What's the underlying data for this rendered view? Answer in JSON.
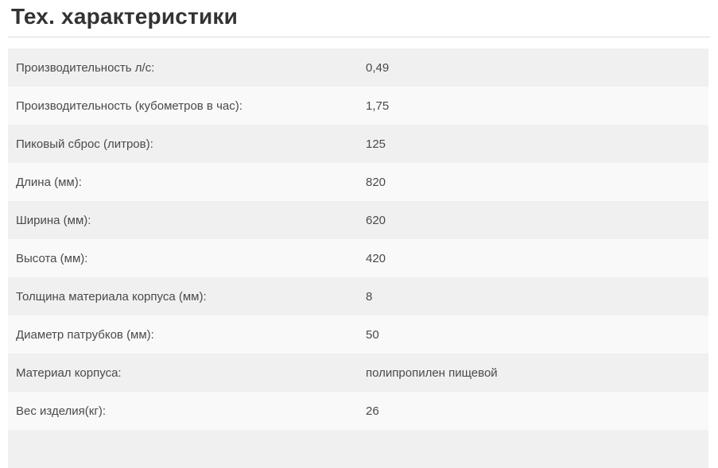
{
  "page": {
    "title": "Тех. характеристики"
  },
  "table": {
    "rows": [
      {
        "label": "Производительность л/с:",
        "value": "0,49"
      },
      {
        "label": "Производительность (кубометров в час):",
        "value": "1,75"
      },
      {
        "label": "Пиковый сброс (литров):",
        "value": "125"
      },
      {
        "label": "Длина (мм):",
        "value": "820"
      },
      {
        "label": "Ширина (мм):",
        "value": "620"
      },
      {
        "label": "Высота (мм):",
        "value": "420"
      },
      {
        "label": "Толщина материала корпуса (мм):",
        "value": "8"
      },
      {
        "label": "Диаметр патрубков (мм):",
        "value": "50"
      },
      {
        "label": "Материал корпуса:",
        "value": "полипропилен пищевой"
      },
      {
        "label": "Вес изделия(кг):",
        "value": "26"
      }
    ]
  },
  "colors": {
    "row_gray": "#f0f0f0",
    "row_light": "#f9f9f9",
    "divider": "#dcdcdc",
    "title_text": "#333333",
    "body_text": "#4a4a4a"
  }
}
